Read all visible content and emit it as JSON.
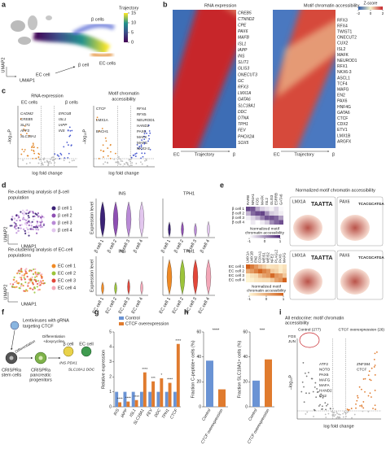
{
  "panel_labels": [
    "a",
    "b",
    "c",
    "d",
    "e",
    "f",
    "g",
    "h",
    "i"
  ],
  "a": {
    "labels": {
      "beta_cells": "β cells",
      "ec_cells": "EC cells",
      "ec_cell": "EC cell",
      "beta_cell": "β cell"
    },
    "colorbar": {
      "title": "Trajectory",
      "ticks": [
        15,
        10,
        5,
        0
      ]
    },
    "x_axis": "UMAP1",
    "y_axis": "UMAP2"
  },
  "b": {
    "rna": {
      "title": "RNA expression",
      "genes": [
        "CREB5",
        "CTNND2",
        "CPE",
        "PAX6",
        "MAFB",
        "ISL1",
        "IAPP",
        "INS",
        "SLIT1",
        "GLIS3",
        "ONECUT3",
        "GC",
        "RFX3",
        "LMX1A",
        "GATA6",
        "SLC18A1",
        "DDC",
        "DTNA",
        "TPH1",
        "FEV",
        "PHOX2A",
        "SOX5"
      ]
    },
    "motif": {
      "title": "Motif chromatin accessibility",
      "motifs": [
        "RFX3",
        "RFX4",
        "TWIST1",
        "ONECUT2",
        "CUX2",
        "ISL2",
        "MAFK",
        "NEUROD1",
        "RFX1",
        "NKX6-3",
        "ASCL1",
        "TCF4",
        "MAFG",
        "EN2",
        "PAX6",
        "HNF4G",
        "GATA6",
        "CTCF",
        "CDX2",
        "ETV1",
        "LMX1B",
        "ARGFX"
      ]
    },
    "colorbar": {
      "title": "Z-score",
      "ticks": [
        -2,
        0,
        2
      ]
    },
    "start": "EC",
    "axis": "Trajectory",
    "end": "β"
  },
  "c": {
    "rna": {
      "title": "RNA expression",
      "groups": [
        "EC cells",
        "β cells"
      ],
      "ec_genes": [
        "CADM2",
        "CREB5",
        "SLIT1",
        "AFF3",
        "SLC18A1"
      ],
      "beta_genes": [
        "ERO1B",
        "ISL1",
        "IAPP",
        "INS"
      ]
    },
    "motif": {
      "title": [
        "Motif chromatin",
        "accessibility"
      ],
      "ec_motifs": [
        "CTCF",
        "LMX1A",
        "BACH1"
      ],
      "beta_motifs": [
        "RFX4",
        "RFX5",
        "NEUROD1",
        "HAND2",
        "PAX6",
        "MAFK",
        "MAFG",
        "NKX2-2"
      ]
    },
    "x_axis": "log fold change",
    "y_axis": "–log₁₀P"
  },
  "d": {
    "beta": {
      "title": [
        "Re-clustering analysis of β-cell",
        "population"
      ],
      "clusters": [
        "β cell 1",
        "β cell 2",
        "β cell 3",
        "β cell 4"
      ],
      "colors": [
        "#3b2276",
        "#8e4fb3",
        "#b98ad6",
        "#e2c6ee"
      ]
    },
    "ec": {
      "title": [
        "Re-clustering analysis of EC-cell",
        "populations"
      ],
      "clusters": [
        "EC cell 1",
        "EC cell 2",
        "EC cell 3",
        "EC cell 4"
      ],
      "colors": [
        "#f08a24",
        "#9cc43a",
        "#e2473a",
        "#f3a7b8"
      ]
    },
    "genes": [
      "INS",
      "TPH1"
    ],
    "y_axis": "Expression level",
    "umap_x": "UMAP1",
    "umap_y": "UMAP2"
  },
  "e": {
    "top": {
      "motifs": [
        "RARB",
        "NR4A1",
        "FOS",
        "MAFK",
        "ISL2",
        "GLIS3",
        "ESRRB",
        "GATA6"
      ],
      "rows": [
        "β cell 1",
        "β cell 2",
        "β cell 3",
        "β cell 4"
      ]
    },
    "bottom": {
      "motifs": [
        "LMX1A",
        "LMX1B",
        "EN2",
        "FOXA1",
        "MEIS1",
        "MEIS2",
        "NFE2",
        "PLAGL2",
        "PAX6",
        "MAFG"
      ],
      "rows": [
        "EC cell 1",
        "EC cell 2",
        "EC cell 3",
        "EC cell 4"
      ]
    },
    "caption": [
      "Normalized motif",
      "chromatin accessibility"
    ],
    "colorbar_ticks": [
      -1,
      0,
      1
    ],
    "logos": {
      "title": "Normalized motif chromatin accessibility",
      "motifs": [
        "LMX1A",
        "PAX6"
      ],
      "sequences": [
        "TAATTA",
        "TCACGCATGA"
      ]
    }
  },
  "f": {
    "title": [
      "Lentiviruses with gRNA",
      "targeting CTCF"
    ],
    "stem": [
      "CRISPRa",
      "stem cells"
    ],
    "diff1": "Differentiation",
    "progenitors": [
      "CRISPRa",
      "pancreatic",
      "progenitors"
    ],
    "diff2": [
      "Differentiation",
      "+doxycycline"
    ],
    "beta_cell": "β cell",
    "ec_cell": "EC cell",
    "beta_markers": "INS PDX1",
    "ec_markers": "SLC18A1 DDC"
  },
  "chart_data": [
    {
      "type": "bar",
      "y_label": "Relative expression",
      "categories": [
        "INS",
        "IAPP",
        "ISL1",
        "SLC18A1",
        "FEV",
        "DDC",
        "TPH1",
        "CTCF"
      ],
      "series": [
        {
          "name": "Control",
          "color": "#6a93d4",
          "values": [
            1,
            1,
            1,
            1,
            1,
            1,
            1,
            1
          ]
        },
        {
          "name": "CTCF overexpression",
          "color": "#e07b2e",
          "values": [
            0.3,
            0.35,
            0.45,
            2.3,
            1.7,
            1.9,
            1.6,
            4.2
          ],
          "significance": [
            "****",
            "****",
            "****",
            "****",
            "***",
            "*",
            "****",
            "****"
          ]
        }
      ],
      "ylim": [
        0,
        5
      ],
      "yticks": [
        0,
        1,
        2,
        3,
        4,
        5
      ]
    },
    {
      "type": "bar",
      "y_label": "Fraction C-peptide+ cells (%)",
      "categories": [
        "Control",
        "CTCF overexpression"
      ],
      "values": [
        37,
        14
      ],
      "colors": [
        "#6a93d4",
        "#e07b2e"
      ],
      "significance": "****",
      "ylim": [
        0,
        60
      ],
      "yticks": [
        0,
        20,
        40,
        60
      ]
    },
    {
      "type": "bar",
      "y_label": "Fraction SLC18A1+ cells (%)",
      "categories": [
        "Control",
        "CTCF overexpression"
      ],
      "values": [
        21,
        38
      ],
      "colors": [
        "#6a93d4",
        "#e07b2e"
      ],
      "significance": "***",
      "ylim": [
        0,
        60
      ],
      "yticks": [
        0,
        20,
        40,
        60
      ]
    }
  ],
  "i": {
    "title": [
      "All endocrine: motif chromatin",
      "accessibility"
    ],
    "groups": [
      "Control (277)",
      "CTCF overexpression (26)"
    ],
    "control_motifs": [
      "FOS",
      "JUN",
      "ATF2",
      "NOTO",
      "PAX6",
      "MAFG",
      "MAFA",
      "HAND2",
      "EN2"
    ],
    "ctcf_motifs": [
      "ZNF384",
      "CTCF"
    ],
    "x_axis": "log fold change",
    "y_axis": "–log₁₀P"
  }
}
